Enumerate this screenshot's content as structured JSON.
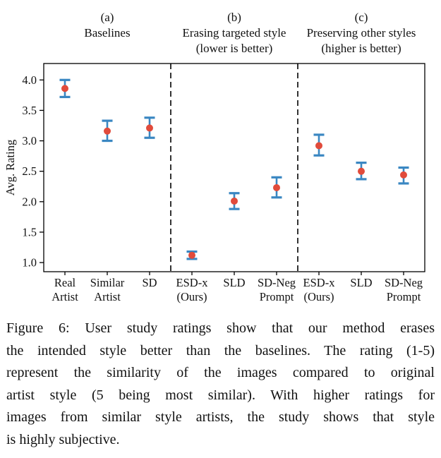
{
  "figure": {
    "caption_lines": [
      "Figure 6: User study ratings show that our method erases",
      "the intended style better than the baselines. The rating (1-5)",
      "represent the similarity of the images compared to original",
      "artist style (5 being most similar). With higher ratings for",
      "images from similar style artists, the study shows that style",
      "is highly subjective."
    ]
  },
  "chart_data": {
    "type": "scatter",
    "title": "",
    "xlabel": "",
    "ylabel": "Avg. Rating",
    "ylim": [
      0.85,
      4.27
    ],
    "yticks": [
      1.0,
      1.5,
      2.0,
      2.5,
      3.0,
      3.5,
      4.0
    ],
    "grid": false,
    "panels": [
      {
        "tag": "(a)",
        "title_lines": [
          "Baselines"
        ],
        "span": [
          0,
          2
        ]
      },
      {
        "tag": "(b)",
        "title_lines": [
          "Erasing targeted style",
          "(lower is better)"
        ],
        "span": [
          3,
          5
        ]
      },
      {
        "tag": "(c)",
        "title_lines": [
          "Preserving other styles",
          "(higher is better)"
        ],
        "span": [
          6,
          8
        ]
      }
    ],
    "separators_after": [
      2,
      5
    ],
    "points": [
      {
        "label_lines": [
          "Real",
          "Artist"
        ],
        "panel": "a",
        "value": 3.86,
        "err_low": 3.72,
        "err_high": 4.0
      },
      {
        "label_lines": [
          "Similar",
          "Artist"
        ],
        "panel": "a",
        "value": 3.16,
        "err_low": 3.0,
        "err_high": 3.33
      },
      {
        "label_lines": [
          "SD"
        ],
        "panel": "a",
        "value": 3.21,
        "err_low": 3.05,
        "err_high": 3.38
      },
      {
        "label_lines": [
          "ESD-x",
          "(Ours)"
        ],
        "panel": "b",
        "value": 1.12,
        "err_low": 1.06,
        "err_high": 1.18
      },
      {
        "label_lines": [
          "SLD"
        ],
        "panel": "b",
        "value": 2.01,
        "err_low": 1.88,
        "err_high": 2.14
      },
      {
        "label_lines": [
          "SD-Neg",
          "Prompt"
        ],
        "panel": "b",
        "value": 2.23,
        "err_low": 2.07,
        "err_high": 2.4
      },
      {
        "label_lines": [
          "ESD-x",
          "(Ours)"
        ],
        "panel": "c",
        "value": 2.92,
        "err_low": 2.76,
        "err_high": 3.1
      },
      {
        "label_lines": [
          "SLD"
        ],
        "panel": "c",
        "value": 2.5,
        "err_low": 2.37,
        "err_high": 2.64
      },
      {
        "label_lines": [
          "SD-Neg",
          "Prompt"
        ],
        "panel": "c",
        "value": 2.44,
        "err_low": 2.3,
        "err_high": 2.56
      }
    ],
    "colors": {
      "point": "#e14b3b",
      "error_bar": "#3a87c2",
      "axis": "#000000"
    }
  }
}
